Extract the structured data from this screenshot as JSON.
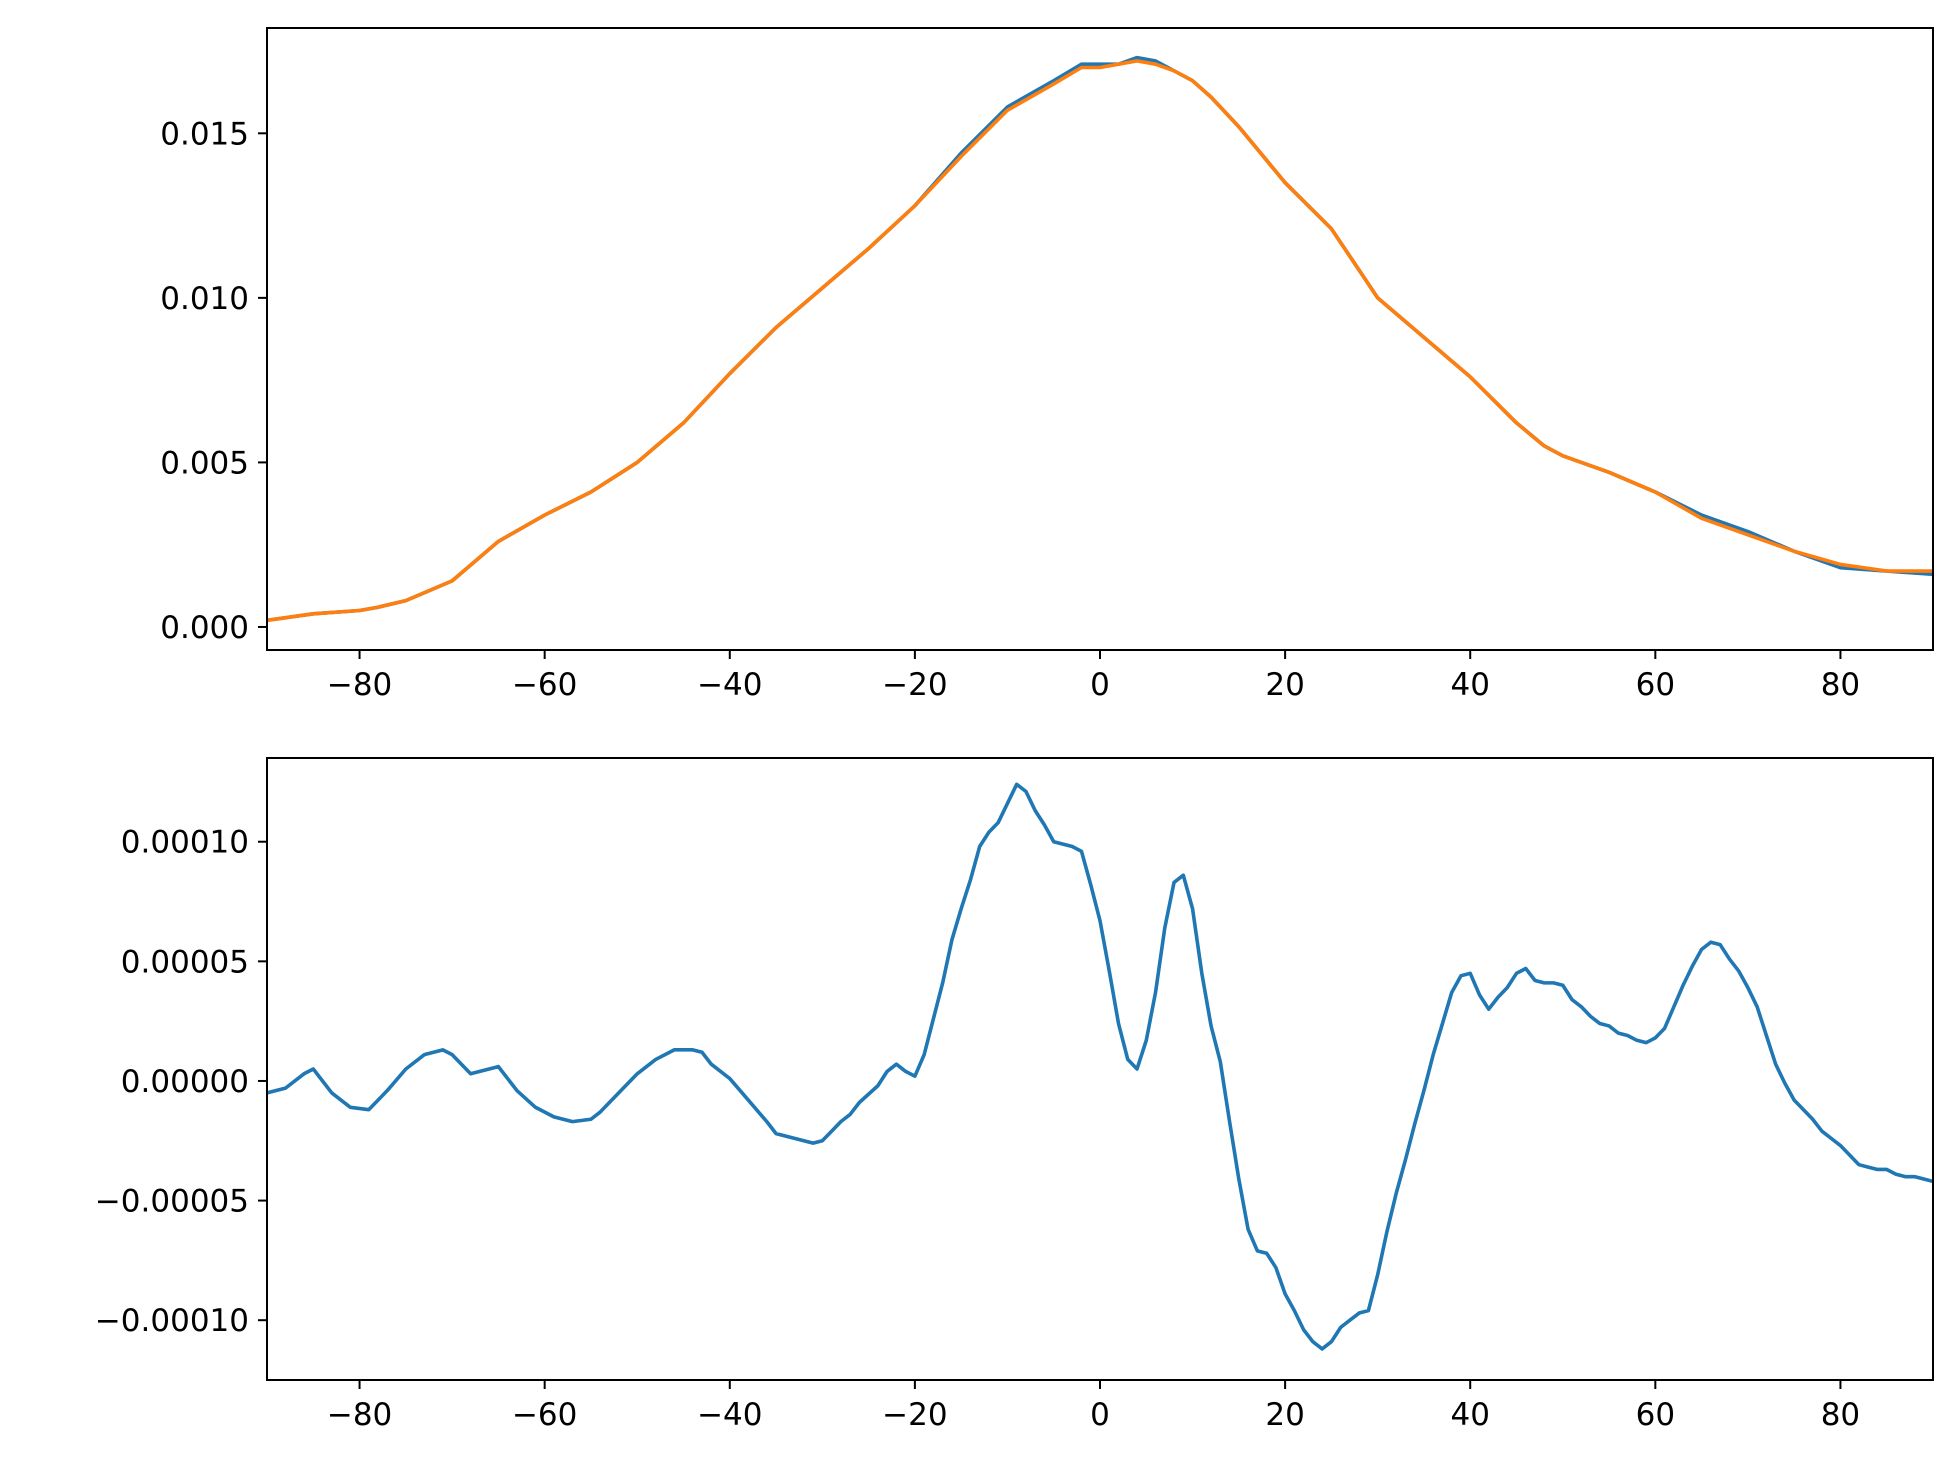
{
  "chart_data": [
    {
      "type": "line",
      "title": "",
      "xlabel": "",
      "ylabel": "",
      "xlim": [
        -90,
        90
      ],
      "ylim": [
        -0.0007,
        0.0182
      ],
      "xticks": [
        -80,
        -60,
        -40,
        -20,
        0,
        20,
        40,
        60,
        80
      ],
      "xtick_labels": [
        "−80",
        "−60",
        "−40",
        "−20",
        "0",
        "20",
        "40",
        "60",
        "80"
      ],
      "yticks": [
        0.0,
        0.005,
        0.01,
        0.015
      ],
      "ytick_labels": [
        "0.000",
        "0.005",
        "0.010",
        "0.015"
      ],
      "grid": false,
      "series": [
        {
          "color": "#1f77b4",
          "x": [
            -90,
            -85,
            -80,
            -78,
            -75,
            -70,
            -65,
            -60,
            -55,
            -50,
            -45,
            -40,
            -35,
            -30,
            -25,
            -20,
            -15,
            -10,
            -5,
            -2,
            0,
            2,
            4,
            6,
            8,
            10,
            12,
            15,
            20,
            25,
            30,
            35,
            40,
            45,
            48,
            50,
            55,
            60,
            65,
            70,
            75,
            80,
            85,
            90
          ],
          "y": [
            0.0002,
            0.0004,
            0.0005,
            0.0006,
            0.0008,
            0.0014,
            0.0026,
            0.0034,
            0.0041,
            0.005,
            0.0062,
            0.0077,
            0.0091,
            0.0103,
            0.0115,
            0.0128,
            0.0144,
            0.0158,
            0.0166,
            0.0171,
            0.0171,
            0.0171,
            0.0173,
            0.0172,
            0.0169,
            0.0166,
            0.0161,
            0.0152,
            0.0135,
            0.0121,
            0.01,
            0.0088,
            0.0076,
            0.0062,
            0.0055,
            0.0052,
            0.0047,
            0.0041,
            0.0034,
            0.0029,
            0.0023,
            0.0018,
            0.0017,
            0.0016
          ]
        },
        {
          "color": "#ff7f0e",
          "x": [
            -90,
            -85,
            -80,
            -78,
            -75,
            -70,
            -65,
            -60,
            -55,
            -50,
            -45,
            -40,
            -35,
            -30,
            -25,
            -20,
            -15,
            -10,
            -5,
            -2,
            0,
            2,
            4,
            6,
            8,
            10,
            12,
            15,
            20,
            25,
            30,
            35,
            40,
            45,
            48,
            50,
            55,
            60,
            65,
            70,
            75,
            80,
            85,
            90
          ],
          "y": [
            0.0002,
            0.0004,
            0.0005,
            0.0006,
            0.0008,
            0.0014,
            0.0026,
            0.0034,
            0.0041,
            0.005,
            0.0062,
            0.0077,
            0.0091,
            0.0103,
            0.0115,
            0.0128,
            0.0143,
            0.0157,
            0.0165,
            0.017,
            0.017,
            0.0171,
            0.0172,
            0.0171,
            0.0169,
            0.0166,
            0.0161,
            0.0152,
            0.0135,
            0.0121,
            0.01,
            0.0088,
            0.0076,
            0.0062,
            0.0055,
            0.0052,
            0.0047,
            0.0041,
            0.0033,
            0.0028,
            0.0023,
            0.0019,
            0.0017,
            0.0017
          ]
        }
      ]
    },
    {
      "type": "line",
      "title": "",
      "xlabel": "",
      "ylabel": "",
      "xlim": [
        -90,
        90
      ],
      "ylim": [
        -0.000125,
        0.000135
      ],
      "xticks": [
        -80,
        -60,
        -40,
        -20,
        0,
        20,
        40,
        60,
        80
      ],
      "xtick_labels": [
        "−80",
        "−60",
        "−40",
        "−20",
        "0",
        "20",
        "40",
        "60",
        "80"
      ],
      "yticks": [
        -0.0001,
        -5e-05,
        0.0,
        5e-05,
        0.0001
      ],
      "ytick_labels": [
        "−0.00010",
        "−0.00005",
        "0.00000",
        "0.00005",
        "0.00010"
      ],
      "grid": false,
      "series": [
        {
          "color": "#1f77b4",
          "x": [
            -90,
            -88,
            -86,
            -85,
            -83,
            -81,
            -79,
            -77,
            -75,
            -73,
            -71,
            -70,
            -68,
            -66,
            -65,
            -64,
            -63,
            -61,
            -59,
            -57,
            -55,
            -54,
            -52,
            -50,
            -48,
            -46,
            -44,
            -43,
            -42,
            -40,
            -38,
            -36,
            -35,
            -33,
            -32,
            -31,
            -30,
            -29,
            -28,
            -27,
            -26,
            -24,
            -23,
            -22,
            -21,
            -20,
            -19,
            -17,
            -16,
            -15,
            -14,
            -13,
            -12,
            -11,
            -10,
            -9,
            -8,
            -7,
            -6,
            -5,
            -4,
            -3,
            -2,
            -1,
            0,
            1,
            2,
            3,
            4,
            5,
            6,
            7,
            8,
            9,
            10,
            11,
            12,
            13,
            14,
            15,
            16,
            17,
            18,
            19,
            20,
            21,
            22,
            23,
            24,
            25,
            26,
            27,
            28,
            29,
            30,
            31,
            32,
            33,
            34,
            35,
            36,
            37,
            38,
            39,
            40,
            41,
            42,
            43,
            44,
            45,
            46,
            47,
            48,
            49,
            50,
            51,
            52,
            53,
            54,
            55,
            56,
            57,
            58,
            59,
            60,
            61,
            62,
            63,
            64,
            65,
            66,
            67,
            68,
            69,
            70,
            71,
            72,
            73,
            74,
            75,
            76,
            77,
            78,
            79,
            80,
            81,
            82,
            83,
            84,
            85,
            86,
            87,
            88,
            89,
            90
          ],
          "y": [
            -5e-06,
            -3e-06,
            3e-06,
            5e-06,
            -5e-06,
            -1.1e-05,
            -1.2e-05,
            -4e-06,
            5e-06,
            1.1e-05,
            1.3e-05,
            1.1e-05,
            3e-06,
            5e-06,
            6e-06,
            1e-06,
            -4e-06,
            -1.1e-05,
            -1.5e-05,
            -1.7e-05,
            -1.6e-05,
            -1.3e-05,
            -5e-06,
            3e-06,
            9e-06,
            1.3e-05,
            1.3e-05,
            1.2e-05,
            7e-06,
            1e-06,
            -8e-06,
            -1.7e-05,
            -2.2e-05,
            -2.4e-05,
            -2.5e-05,
            -2.6e-05,
            -2.5e-05,
            -2.1e-05,
            -1.7e-05,
            -1.4e-05,
            -9e-06,
            -2e-06,
            4e-06,
            7e-06,
            4e-06,
            2e-06,
            1.1e-05,
            4.1e-05,
            5.9e-05,
            7.2e-05,
            8.4e-05,
            9.8e-05,
            0.000104,
            0.000108,
            0.000116,
            0.000124,
            0.000121,
            0.000113,
            0.000107,
            0.0001,
            9.9e-05,
            9.8e-05,
            9.6e-05,
            8.2e-05,
            6.7e-05,
            4.6e-05,
            2.4e-05,
            9e-06,
            5e-06,
            1.7e-05,
            3.7e-05,
            6.4e-05,
            8.3e-05,
            8.6e-05,
            7.2e-05,
            4.5e-05,
            2.3e-05,
            8e-06,
            -1.7e-05,
            -4.1e-05,
            -6.2e-05,
            -7.1e-05,
            -7.2e-05,
            -7.8e-05,
            -8.9e-05,
            -9.6e-05,
            -0.000104,
            -0.000109,
            -0.000112,
            -0.000109,
            -0.000103,
            -0.0001,
            -9.7e-05,
            -9.6e-05,
            -8.1e-05,
            -6.3e-05,
            -4.7e-05,
            -3.3e-05,
            -1.8e-05,
            -4e-06,
            1.1e-05,
            2.4e-05,
            3.7e-05,
            4.4e-05,
            4.5e-05,
            3.6e-05,
            3e-05,
            3.5e-05,
            3.9e-05,
            4.5e-05,
            4.7e-05,
            4.2e-05,
            4.1e-05,
            4.1e-05,
            4e-05,
            3.4e-05,
            3.1e-05,
            2.7e-05,
            2.4e-05,
            2.3e-05,
            2e-05,
            1.9e-05,
            1.7e-05,
            1.6e-05,
            1.8e-05,
            2.2e-05,
            3.1e-05,
            4e-05,
            4.8e-05,
            5.5e-05,
            5.8e-05,
            5.7e-05,
            5.1e-05,
            4.6e-05,
            3.9e-05,
            3.1e-05,
            1.9e-05,
            7e-06,
            -1e-06,
            -8e-06,
            -1.2e-05,
            -1.6e-05,
            -2.1e-05,
            -2.4e-05,
            -2.7e-05,
            -3.1e-05,
            -3.5e-05,
            -3.6e-05,
            -3.7e-05,
            -3.7e-05,
            -3.9e-05,
            -4e-05,
            -4e-05,
            -4.1e-05,
            -4.2e-05
          ]
        }
      ]
    }
  ]
}
